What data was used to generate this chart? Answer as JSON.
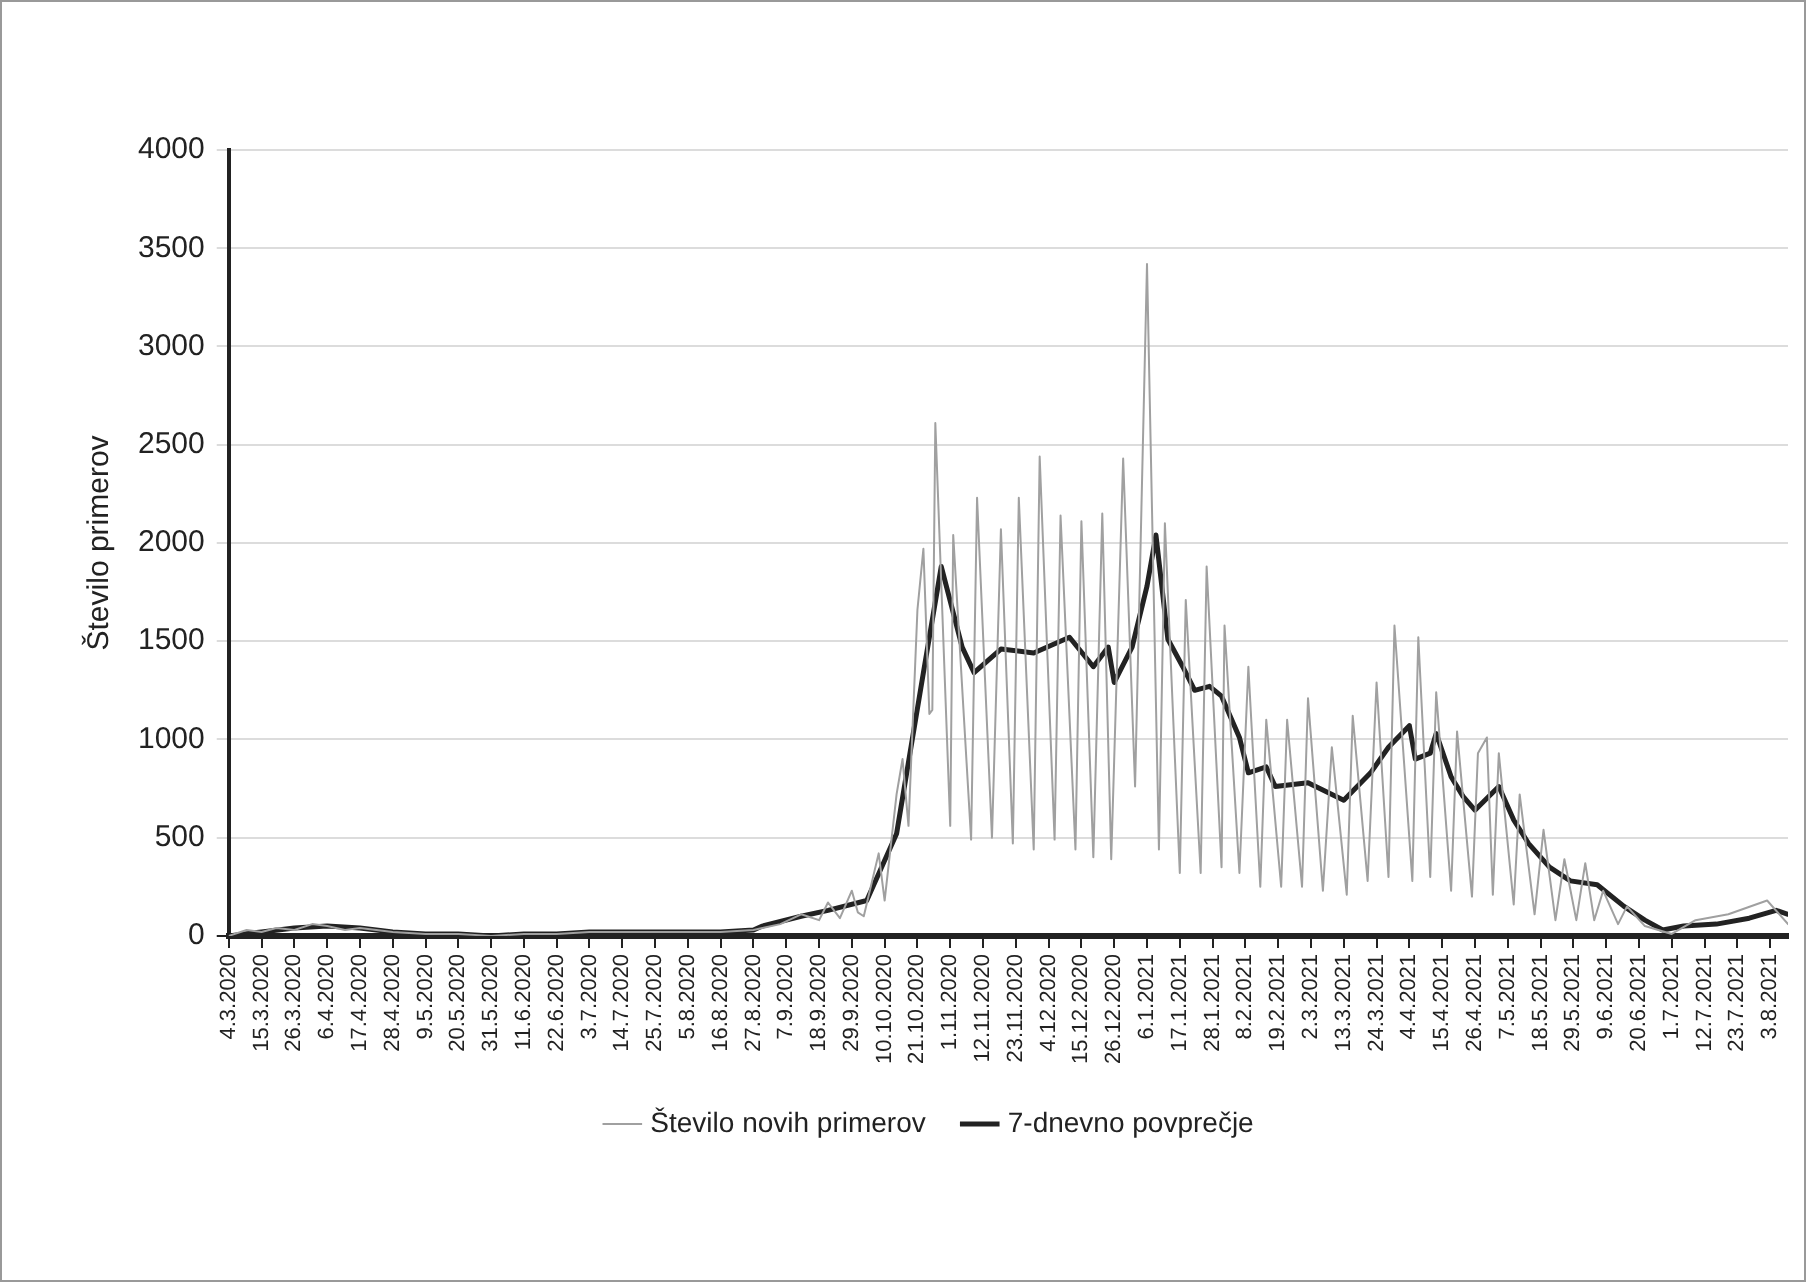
{
  "chart_data": {
    "type": "line",
    "ylabel": "Število primerov",
    "xlim": [
      "2020-03-04",
      "2021-08-09"
    ],
    "ylim": [
      0,
      4000
    ],
    "yticks": [
      0,
      500,
      1000,
      1500,
      2000,
      2500,
      3000,
      3500,
      4000
    ],
    "xticks": [
      {
        "value": "2020-03-04",
        "label": "4.3.2020"
      },
      {
        "value": "2020-03-15",
        "label": "15.3.2020"
      },
      {
        "value": "2020-03-26",
        "label": "26.3.2020"
      },
      {
        "value": "2020-04-06",
        "label": "6.4.2020"
      },
      {
        "value": "2020-04-17",
        "label": "17.4.2020"
      },
      {
        "value": "2020-04-28",
        "label": "28.4.2020"
      },
      {
        "value": "2020-05-09",
        "label": "9.5.2020"
      },
      {
        "value": "2020-05-20",
        "label": "20.5.2020"
      },
      {
        "value": "2020-05-31",
        "label": "31.5.2020"
      },
      {
        "value": "2020-06-11",
        "label": "11.6.2020"
      },
      {
        "value": "2020-06-22",
        "label": "22.6.2020"
      },
      {
        "value": "2020-07-03",
        "label": "3.7.2020"
      },
      {
        "value": "2020-07-14",
        "label": "14.7.2020"
      },
      {
        "value": "2020-07-25",
        "label": "25.7.2020"
      },
      {
        "value": "2020-08-05",
        "label": "5.8.2020"
      },
      {
        "value": "2020-08-16",
        "label": "16.8.2020"
      },
      {
        "value": "2020-08-27",
        "label": "27.8.2020"
      },
      {
        "value": "2020-09-07",
        "label": "7.9.2020"
      },
      {
        "value": "2020-09-18",
        "label": "18.9.2020"
      },
      {
        "value": "2020-09-29",
        "label": "29.9.2020"
      },
      {
        "value": "2020-10-10",
        "label": "10.10.2020"
      },
      {
        "value": "2020-10-21",
        "label": "21.10.2020"
      },
      {
        "value": "2020-11-01",
        "label": "1.11.2020"
      },
      {
        "value": "2020-11-12",
        "label": "12.11.2020"
      },
      {
        "value": "2020-11-23",
        "label": "23.11.2020"
      },
      {
        "value": "2020-12-04",
        "label": "4.12.2020"
      },
      {
        "value": "2020-12-15",
        "label": "15.12.2020"
      },
      {
        "value": "2020-12-26",
        "label": "26.12.2020"
      },
      {
        "value": "2021-01-06",
        "label": "6.1.2021"
      },
      {
        "value": "2021-01-17",
        "label": "17.1.2021"
      },
      {
        "value": "2021-01-28",
        "label": "28.1.2021"
      },
      {
        "value": "2021-02-08",
        "label": "8.2.2021"
      },
      {
        "value": "2021-02-19",
        "label": "19.2.2021"
      },
      {
        "value": "2021-03-02",
        "label": "2.3.2021"
      },
      {
        "value": "2021-03-13",
        "label": "13.3.2021"
      },
      {
        "value": "2021-03-24",
        "label": "24.3.2021"
      },
      {
        "value": "2021-04-04",
        "label": "4.4.2021"
      },
      {
        "value": "2021-04-15",
        "label": "15.4.2021"
      },
      {
        "value": "2021-04-26",
        "label": "26.4.2021"
      },
      {
        "value": "2021-05-07",
        "label": "7.5.2021"
      },
      {
        "value": "2021-05-18",
        "label": "18.5.2021"
      },
      {
        "value": "2021-05-29",
        "label": "29.5.2021"
      },
      {
        "value": "2021-06-09",
        "label": "9.6.2021"
      },
      {
        "value": "2021-06-20",
        "label": "20.6.2021"
      },
      {
        "value": "2021-07-01",
        "label": "1.7.2021"
      },
      {
        "value": "2021-07-12",
        "label": "12.7.2021"
      },
      {
        "value": "2021-07-23",
        "label": "23.7.2021"
      },
      {
        "value": "2021-08-03",
        "label": "3.8.2021"
      }
    ],
    "grid": "y",
    "legend": "bottom",
    "marker": "none",
    "series": [
      {
        "name": "Število novih primerov",
        "color": "#a0a0a0",
        "x": [
          "2020-03-04",
          "2020-03-10",
          "2020-03-15",
          "2020-03-20",
          "2020-03-26",
          "2020-04-01",
          "2020-04-06",
          "2020-04-12",
          "2020-04-17",
          "2020-04-28",
          "2020-05-09",
          "2020-05-20",
          "2020-05-31",
          "2020-06-11",
          "2020-06-22",
          "2020-07-03",
          "2020-07-14",
          "2020-07-25",
          "2020-08-05",
          "2020-08-16",
          "2020-08-27",
          "2020-08-30",
          "2020-09-05",
          "2020-09-12",
          "2020-09-18",
          "2020-09-21",
          "2020-09-25",
          "2020-09-29",
          "2020-10-01",
          "2020-10-03",
          "2020-10-08",
          "2020-10-10",
          "2020-10-14",
          "2020-10-16",
          "2020-10-18",
          "2020-10-21",
          "2020-10-23",
          "2020-10-25",
          "2020-10-26",
          "2020-10-27",
          "2020-11-01",
          "2020-11-02",
          "2020-11-08",
          "2020-11-10",
          "2020-11-15",
          "2020-11-18",
          "2020-11-22",
          "2020-11-24",
          "2020-11-29",
          "2020-12-01",
          "2020-12-06",
          "2020-12-08",
          "2020-12-13",
          "2020-12-15",
          "2020-12-19",
          "2020-12-22",
          "2020-12-25",
          "2020-12-29",
          "2021-01-02",
          "2021-01-06",
          "2021-01-10",
          "2021-01-12",
          "2021-01-17",
          "2021-01-19",
          "2021-01-24",
          "2021-01-26",
          "2021-01-31",
          "2021-02-01",
          "2021-02-06",
          "2021-02-09",
          "2021-02-13",
          "2021-02-15",
          "2021-02-20",
          "2021-02-22",
          "2021-02-27",
          "2021-03-01",
          "2021-03-06",
          "2021-03-09",
          "2021-03-14",
          "2021-03-16",
          "2021-03-21",
          "2021-03-24",
          "2021-03-28",
          "2021-03-30",
          "2021-04-05",
          "2021-04-07",
          "2021-04-11",
          "2021-04-13",
          "2021-04-18",
          "2021-04-20",
          "2021-04-25",
          "2021-04-27",
          "2021-04-30",
          "2021-05-02",
          "2021-05-04",
          "2021-05-09",
          "2021-05-11",
          "2021-05-16",
          "2021-05-19",
          "2021-05-23",
          "2021-05-26",
          "2021-05-30",
          "2021-06-02",
          "2021-06-05",
          "2021-06-08",
          "2021-06-13",
          "2021-06-16",
          "2021-06-22",
          "2021-07-01",
          "2021-07-09",
          "2021-07-20",
          "2021-08-02",
          "2021-08-09"
        ],
        "values": [
          0,
          30,
          20,
          40,
          30,
          60,
          50,
          30,
          40,
          20,
          10,
          10,
          0,
          10,
          10,
          20,
          20,
          20,
          20,
          20,
          30,
          40,
          60,
          110,
          80,
          170,
          90,
          230,
          120,
          100,
          420,
          180,
          720,
          900,
          560,
          1660,
          1970,
          1130,
          1150,
          2610,
          560,
          2040,
          490,
          2230,
          500,
          2070,
          470,
          2230,
          440,
          2440,
          490,
          2140,
          440,
          2110,
          400,
          2150,
          390,
          2430,
          760,
          3420,
          440,
          2100,
          320,
          1710,
          320,
          1880,
          350,
          1580,
          320,
          1370,
          250,
          1100,
          250,
          1100,
          250,
          1210,
          230,
          960,
          210,
          1120,
          280,
          1290,
          300,
          1580,
          280,
          1520,
          300,
          1240,
          230,
          1040,
          200,
          930,
          1010,
          210,
          930,
          160,
          720,
          110,
          540,
          80,
          390,
          80,
          370,
          80,
          230,
          60,
          150,
          50,
          10,
          80,
          110,
          180,
          60
        ]
      },
      {
        "name": "7-dnevno povprečje",
        "color": "#222222",
        "x": [
          "2020-03-04",
          "2020-03-15",
          "2020-03-26",
          "2020-04-06",
          "2020-04-17",
          "2020-04-28",
          "2020-05-09",
          "2020-05-20",
          "2020-05-31",
          "2020-06-11",
          "2020-06-22",
          "2020-07-03",
          "2020-07-14",
          "2020-07-25",
          "2020-08-05",
          "2020-08-16",
          "2020-08-27",
          "2020-08-30",
          "2020-09-12",
          "2020-09-21",
          "2020-10-04",
          "2020-10-14",
          "2020-10-23",
          "2020-10-29",
          "2020-11-05",
          "2020-11-09",
          "2020-11-18",
          "2020-11-29",
          "2020-12-11",
          "2020-12-19",
          "2020-12-24",
          "2020-12-26",
          "2021-01-01",
          "2021-01-06",
          "2021-01-09",
          "2021-01-13",
          "2021-01-18",
          "2021-01-22",
          "2021-01-27",
          "2021-01-31",
          "2021-02-06",
          "2021-02-09",
          "2021-02-15",
          "2021-02-18",
          "2021-03-01",
          "2021-03-13",
          "2021-03-22",
          "2021-03-28",
          "2021-04-04",
          "2021-04-06",
          "2021-04-11",
          "2021-04-13",
          "2021-04-18",
          "2021-04-22",
          "2021-04-26",
          "2021-04-28",
          "2021-05-04",
          "2021-05-09",
          "2021-05-14",
          "2021-05-21",
          "2021-05-28",
          "2021-06-06",
          "2021-06-15",
          "2021-06-22",
          "2021-06-28",
          "2021-07-05",
          "2021-07-16",
          "2021-07-27",
          "2021-08-05",
          "2021-08-09"
        ],
        "values": [
          0,
          20,
          40,
          50,
          40,
          20,
          10,
          10,
          0,
          10,
          10,
          20,
          20,
          20,
          20,
          20,
          30,
          50,
          100,
          130,
          180,
          520,
          1340,
          1880,
          1470,
          1340,
          1460,
          1440,
          1520,
          1370,
          1470,
          1290,
          1470,
          1780,
          2040,
          1510,
          1370,
          1250,
          1270,
          1220,
          1010,
          830,
          860,
          760,
          780,
          690,
          830,
          960,
          1070,
          900,
          930,
          1030,
          810,
          710,
          640,
          670,
          760,
          590,
          470,
          350,
          280,
          260,
          150,
          80,
          30,
          50,
          60,
          90,
          130,
          110
        ]
      }
    ]
  }
}
